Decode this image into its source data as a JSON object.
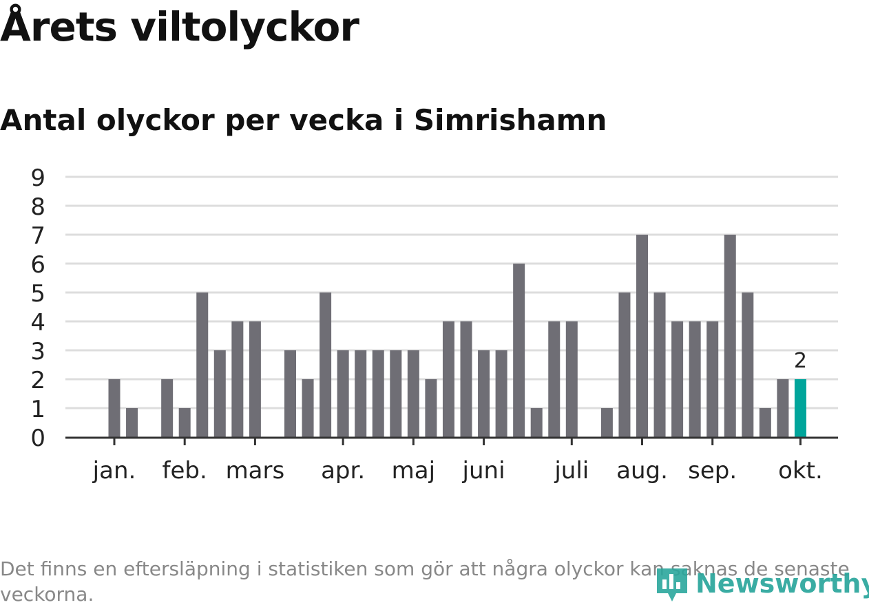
{
  "title": "Årets viltolyckor",
  "subtitle": "Antal olyckor per vecka i Simrishamn",
  "footnote": "Det finns en eftersläpning i statistiken som gör att några olyckor kan saknas de senaste veckorna.",
  "brand": "Newsworthy",
  "colors": {
    "bar": "#6f6e75",
    "highlight": "#00a59b",
    "grid": "#dddddd",
    "axis": "#333333",
    "text": "#222222"
  },
  "chart_data": {
    "type": "bar",
    "title": "Antal olyckor per vecka i Simrishamn",
    "xlabel": "",
    "ylabel": "",
    "ylim": [
      0,
      9
    ],
    "yticks": [
      "0",
      "1",
      "2",
      "3",
      "4",
      "5",
      "6",
      "7",
      "8",
      "9"
    ],
    "values": [
      0,
      0,
      2,
      1,
      0,
      2,
      1,
      5,
      3,
      4,
      4,
      0,
      3,
      2,
      5,
      3,
      3,
      3,
      3,
      3,
      2,
      4,
      4,
      3,
      3,
      6,
      1,
      4,
      4,
      0,
      1,
      5,
      7,
      5,
      4,
      4,
      4,
      7,
      5,
      1,
      2,
      2
    ],
    "highlight_index": 41,
    "highlight_label": "2",
    "month_ticks": [
      {
        "label": "jan.",
        "week": 2
      },
      {
        "label": "feb.",
        "week": 6
      },
      {
        "label": "mars",
        "week": 10
      },
      {
        "label": "apr.",
        "week": 15
      },
      {
        "label": "maj",
        "week": 19
      },
      {
        "label": "juni",
        "week": 23
      },
      {
        "label": "juli",
        "week": 28
      },
      {
        "label": "aug.",
        "week": 32
      },
      {
        "label": "sep.",
        "week": 36
      },
      {
        "label": "okt.",
        "week": 41
      }
    ]
  }
}
